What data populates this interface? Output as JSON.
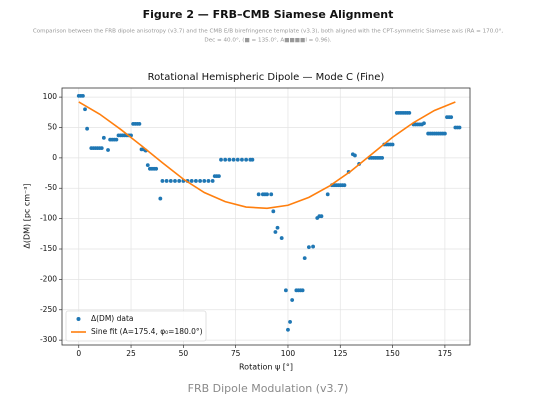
{
  "header": {
    "title": "Figure 2 — FRB–CMB Siamese Alignment",
    "subtitle": [
      "Comparison between the FRB dipole anisotropy (v3.7) and the CMB E/B birefringence template (v3.3), both aligned with the CPT-symmetric Siamese axis (RA = 170.0°,",
      "Dec = 40.0°, (■ = 135.0°, A■■■■l = 0.96)."
    ]
  },
  "chart_data": {
    "type": "scatter",
    "title": "Rotational Hemispheric Dipole — Mode C (Fine)",
    "xlabel": "Rotation ψ [°]",
    "ylabel": "Δ(DM) [pc cm⁻³]",
    "xlim": [
      -8,
      187
    ],
    "ylim": [
      -308,
      115
    ],
    "xticks": [
      0,
      25,
      50,
      75,
      100,
      125,
      150,
      175
    ],
    "yticks": [
      -300,
      -250,
      -200,
      -150,
      -100,
      -50,
      0,
      50,
      100
    ],
    "grid": true,
    "legend": "lower left",
    "series": [
      {
        "name": "Δ(DM) data",
        "type": "scatter",
        "color": "#1f77b4",
        "x": [
          0,
          1,
          2,
          3,
          4,
          6,
          7,
          8,
          9,
          10,
          11,
          12,
          14,
          15,
          16,
          17,
          18,
          19,
          20,
          21,
          22,
          23,
          24,
          25,
          26,
          27,
          28,
          29,
          30,
          31,
          32,
          33,
          34,
          35,
          36,
          37,
          39,
          40,
          42,
          44,
          46,
          48,
          50,
          52,
          54,
          56,
          58,
          60,
          62,
          64,
          65,
          66,
          67,
          68,
          70,
          72,
          74,
          76,
          78,
          80,
          82,
          83,
          86,
          88,
          89,
          90,
          92,
          93,
          94,
          95,
          97,
          99,
          100,
          101,
          102,
          104,
          105,
          106,
          107,
          108,
          110,
          112,
          114,
          115,
          116,
          119,
          121,
          122,
          123,
          124,
          125,
          126,
          127,
          129,
          131,
          132,
          134,
          139,
          140,
          141,
          142,
          143,
          144,
          145,
          146,
          147,
          148,
          149,
          150,
          152,
          153,
          154,
          155,
          156,
          157,
          158,
          160,
          161,
          162,
          163,
          164,
          165,
          167,
          168,
          169,
          170,
          171,
          172,
          173,
          174,
          175,
          176,
          177,
          178,
          180,
          181,
          182
        ],
        "values": [
          102,
          102,
          102,
          80,
          48,
          16,
          16,
          16,
          16,
          16,
          16,
          33,
          13,
          30,
          30,
          30,
          30,
          37,
          37,
          37,
          37,
          37,
          37,
          37,
          56,
          56,
          56,
          56,
          14,
          14,
          12,
          -12,
          -18,
          -18,
          -18,
          -18,
          -67,
          -38,
          -38,
          -38,
          -38,
          -38,
          -38,
          -38,
          -38,
          -38,
          -38,
          -38,
          -38,
          -38,
          -30,
          -30,
          -30,
          -3,
          -3,
          -3,
          -3,
          -3,
          -3,
          -3,
          -3,
          -3,
          -60,
          -60,
          -60,
          -60,
          -60,
          -88,
          -122,
          -115,
          -132,
          -218,
          -283,
          -270,
          -234,
          -218,
          -218,
          -218,
          -218,
          -165,
          -147,
          -146,
          -99,
          -96,
          -96,
          -60,
          -45,
          -45,
          -45,
          -45,
          -45,
          -45,
          -45,
          -23,
          6,
          4,
          -10,
          0,
          0,
          0,
          0,
          0,
          0,
          0,
          22,
          22,
          22,
          22,
          22,
          74,
          74,
          74,
          74,
          74,
          74,
          74,
          55,
          55,
          55,
          55,
          55,
          57,
          40,
          40,
          40,
          40,
          40,
          40,
          40,
          40,
          40,
          67,
          67,
          67,
          50,
          50,
          50
        ]
      },
      {
        "name": "Sine fit (A=175.4, φ₀=180.0°)",
        "type": "line",
        "color": "#ff7f0e",
        "x": [
          0,
          10,
          20,
          30,
          40,
          50,
          60,
          70,
          80,
          90,
          100,
          110,
          120,
          130,
          140,
          150,
          160,
          170,
          180
        ],
        "values": [
          92,
          72,
          47,
          20,
          -8,
          -35,
          -57,
          -72,
          -81,
          -83,
          -78,
          -65,
          -46,
          -22,
          6,
          34,
          58,
          78,
          92
        ]
      }
    ]
  },
  "caption": "FRB Dipole Modulation (v3.7)"
}
